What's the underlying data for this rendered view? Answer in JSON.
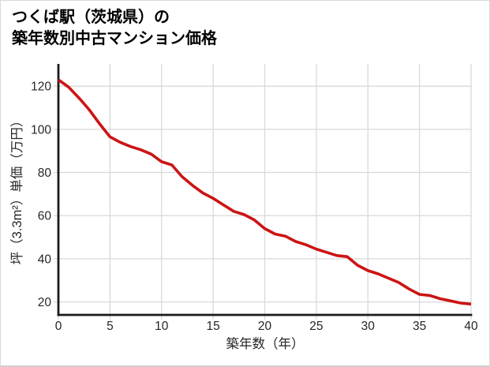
{
  "header": {
    "title_line1": "つくば駅（茨城県）の",
    "title_line2": "築年数別中古マンション価格"
  },
  "chart_data": {
    "type": "line",
    "title": "つくば駅（茨城県）の 築年数別中古マンション価格",
    "xlabel": "築年数（年）",
    "ylabel": "坪（3.3m²）単価（万円）",
    "x": [
      0,
      1,
      2,
      3,
      4,
      5,
      6,
      7,
      8,
      9,
      10,
      11,
      12,
      13,
      14,
      15,
      16,
      17,
      18,
      19,
      20,
      21,
      22,
      23,
      24,
      25,
      26,
      27,
      28,
      29,
      30,
      31,
      32,
      33,
      34,
      35,
      36,
      37,
      38,
      39,
      40
    ],
    "values": [
      123,
      119.5,
      114.5,
      109,
      102.5,
      96.5,
      94,
      92,
      90.5,
      88.5,
      85,
      83.5,
      78,
      74,
      70.5,
      68,
      65,
      62,
      60.5,
      58,
      54,
      51.5,
      50.5,
      48,
      46.5,
      44.5,
      43,
      41.5,
      41,
      37,
      34.5,
      33,
      31,
      29,
      26,
      23.5,
      23,
      21.5,
      20.5,
      19.5,
      19
    ],
    "xticks": [
      0,
      5,
      10,
      15,
      20,
      25,
      30,
      35,
      40
    ],
    "yticks": [
      20,
      40,
      60,
      80,
      100,
      120
    ],
    "xlim": [
      0,
      40
    ],
    "ylim": [
      14,
      130.3
    ],
    "grid": true,
    "legend": "none",
    "line_color": "#cc1414",
    "grid_color": "#d9d9d9",
    "axis_color": "#1a1a1a"
  }
}
